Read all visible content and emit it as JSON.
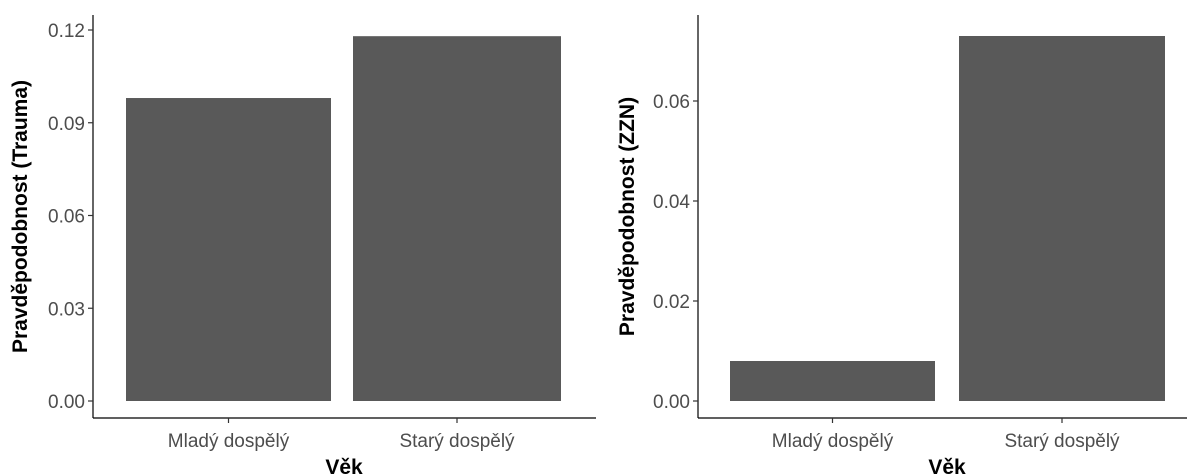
{
  "chart_data": [
    {
      "type": "bar",
      "categories": [
        "Mladý dospělý",
        "Starý dospělý"
      ],
      "values": [
        0.098,
        0.118
      ],
      "xlabel": "Věk",
      "ylabel": "Pravděpodobnost (Trauma)",
      "ylim": [
        0,
        0.12
      ],
      "yticks": [
        "0.00",
        "0.03",
        "0.06",
        "0.09",
        "0.12"
      ],
      "grid": false,
      "bar_color": "#595959"
    },
    {
      "type": "bar",
      "categories": [
        "Mladý dospělý",
        "Starý dospělý"
      ],
      "values": [
        0.008,
        0.073
      ],
      "xlabel": "Věk",
      "ylabel": "Pravděpodobnost (ZZN)",
      "ylim": [
        0,
        0.08
      ],
      "yticks": [
        "0.00",
        "0.02",
        "0.04",
        "0.06"
      ],
      "grid": false,
      "bar_color": "#595959"
    }
  ]
}
